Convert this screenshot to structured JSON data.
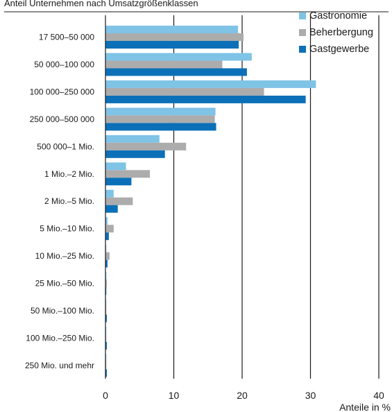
{
  "chart_data": {
    "type": "bar",
    "orientation": "horizontal",
    "title": "Anteil Unternehmen nach Umsatzgrößenklassen",
    "xlabel": "Anteile in %",
    "ylabel": "",
    "xlim": [
      0,
      40
    ],
    "x_ticks": [
      0,
      10,
      20,
      30,
      40
    ],
    "grid": true,
    "legend_position": "top-right",
    "categories": [
      "17 500–50 000",
      "50 000–100 000",
      "100 000–250 000",
      "250 000–500 000",
      "500 000–1 Mio.",
      "1 Mio.–2 Mio.",
      "2 Mio.–5 Mio.",
      "5 Mio.–10 Mio.",
      "10 Mio.–25 Mio.",
      "25 Mio.–50 Mio.",
      "50 Mio.–100 Mio.",
      "100 Mio.–250 Mio.",
      "250 Mio. und mehr"
    ],
    "series": [
      {
        "name": "Gastronomie",
        "color": "#7fc3e6",
        "values": [
          19.4,
          21.4,
          30.8,
          16.1,
          7.9,
          3.0,
          1.2,
          0.3,
          0.1,
          0.1,
          0.1,
          0.1,
          0.1
        ]
      },
      {
        "name": "Beherbergung",
        "color": "#acacac",
        "values": [
          20.2,
          17.1,
          23.2,
          16.0,
          11.8,
          6.5,
          4.0,
          1.2,
          0.6,
          0.2,
          0.1,
          0.1,
          0.1
        ]
      },
      {
        "name": "Gastgewerbe",
        "color": "#0c70b8",
        "values": [
          19.5,
          20.7,
          29.3,
          16.2,
          8.7,
          3.8,
          1.8,
          0.5,
          0.3,
          0.1,
          0.2,
          0.2,
          0.2
        ]
      }
    ]
  }
}
